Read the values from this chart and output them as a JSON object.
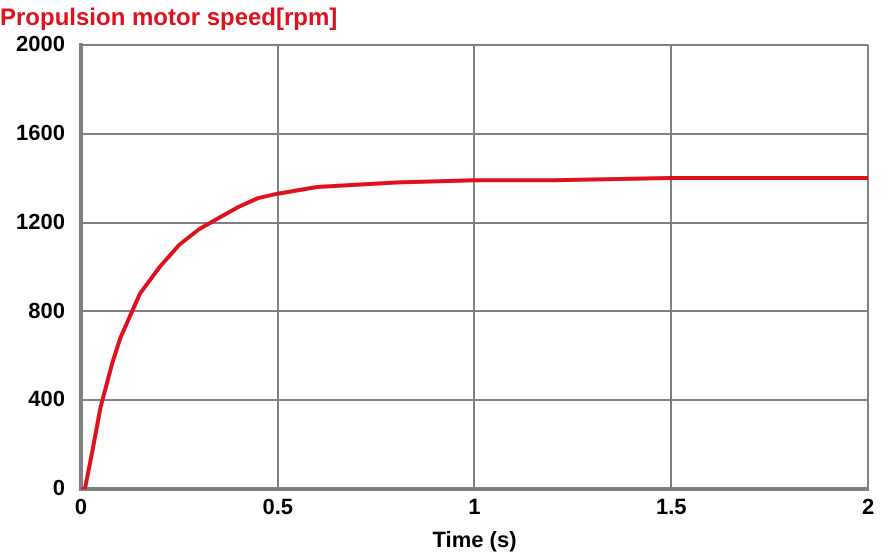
{
  "chart_data": {
    "type": "line",
    "title": "Propulsion motor speed[rpm]",
    "xlabel": "Time (s)",
    "x": [
      0,
      0.01,
      0.03,
      0.05,
      0.08,
      0.1,
      0.15,
      0.2,
      0.25,
      0.3,
      0.35,
      0.4,
      0.45,
      0.5,
      0.6,
      0.7,
      0.8,
      1.0,
      1.2,
      1.5,
      2.0
    ],
    "series": [
      {
        "color": "#e0101c",
        "values": [
          0,
          0,
          180,
          370,
          570,
          680,
          880,
          1000,
          1100,
          1170,
          1220,
          1270,
          1310,
          1330,
          1360,
          1370,
          1380,
          1390,
          1390,
          1400,
          1400
        ]
      }
    ],
    "xlim": [
      0,
      2
    ],
    "xticks": [
      0,
      0.5,
      1,
      1.5,
      2
    ],
    "ylim": [
      0,
      2000
    ],
    "yticks": [
      0,
      400,
      800,
      1200,
      1600,
      2000
    ],
    "grid": true,
    "legend": false,
    "marker": "none",
    "line_style": "solid"
  }
}
